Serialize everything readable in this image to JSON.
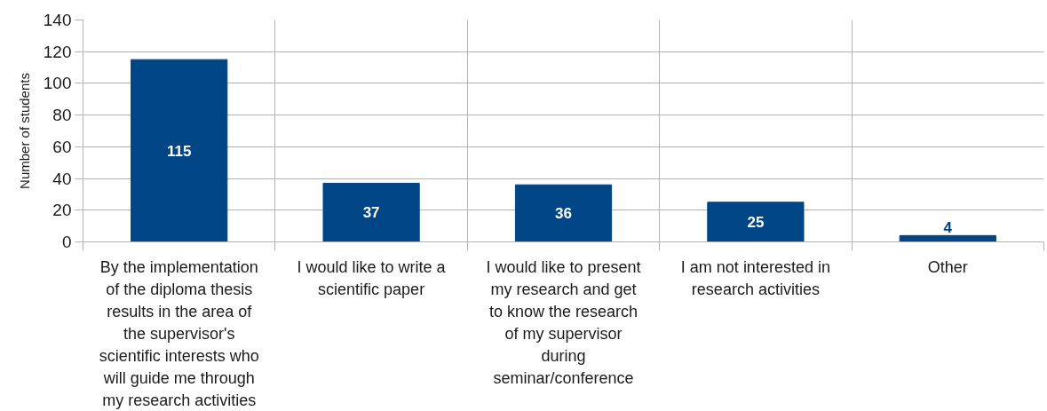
{
  "chart_data": {
    "type": "bar",
    "ylabel": "Number of students",
    "categories": [
      "By the implementation of the diploma thesis results in the area of the supervisor's scientific interests who will guide me through my research activities",
      "I would like to write a scientific paper",
      "I would like to present my research and get to know the research of my supervisor during seminar/conference",
      "I am not interested in research activities",
      "Other"
    ],
    "values": [
      115,
      37,
      36,
      25,
      4
    ],
    "color": "#004586",
    "ylim": [
      0,
      140
    ],
    "yticks": [
      0,
      20,
      40,
      60,
      80,
      100,
      120,
      140
    ],
    "grid": true,
    "data_labels": true
  }
}
